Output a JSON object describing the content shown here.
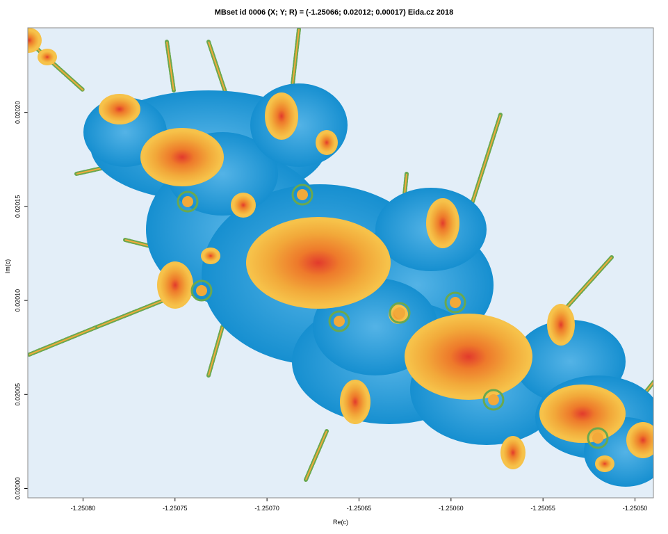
{
  "chart_data": {
    "type": "image",
    "title": "MBset id 0006 (X; Y; R) = (-1.25066; 0.02012; 0.00017) Eida.cz 2018",
    "xlabel": "Re(c)",
    "ylabel": "Im(c)",
    "xlim": [
      -1.25083,
      -1.25049
    ],
    "ylim": [
      0.019995,
      0.020245
    ],
    "x_ticks": [
      -1.2508,
      -1.25075,
      -1.2507,
      -1.25065,
      -1.2506,
      -1.25055,
      -1.2505
    ],
    "x_tick_labels": [
      "-1.25080",
      "-1.25075",
      "-1.25070",
      "-1.25065",
      "-1.25060",
      "-1.25055",
      "-1.25050"
    ],
    "y_ticks": [
      0.02,
      0.02005,
      0.0201,
      0.02015,
      0.0202
    ],
    "y_tick_labels": [
      "0.02000",
      "0.02005",
      "0.02010",
      "0.02015",
      "0.02020"
    ],
    "colors": {
      "background": "#e3eef8",
      "interior": "#1a9ad8",
      "bulb": "#f2a93a",
      "bulb_core": "#e8662a",
      "filament": "#6aa84f"
    }
  }
}
